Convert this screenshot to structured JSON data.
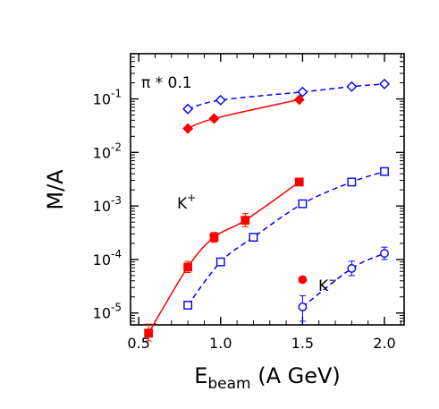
{
  "chart_data": {
    "type": "scatter",
    "title": "",
    "xlabel": "E",
    "xlabel_sub": "beam",
    "xlabel_suffix": " (A GeV)",
    "ylabel": "M/A",
    "xlim": [
      0.45,
      2.12
    ],
    "ylim": [
      6e-06,
      0.7
    ],
    "yscale": "log",
    "grid": false,
    "x_ticks": [
      0.5,
      1.0,
      1.5,
      2.0
    ],
    "x_tick_labels": [
      "0.5",
      "1.0",
      "1.5",
      "2.0"
    ],
    "y_tick_exponents": [
      "-1",
      "-2",
      "-3",
      "-4",
      "-5"
    ],
    "y_tick_base": "10",
    "annotations": {
      "pion": "π * 0.1",
      "kplus": "K",
      "kplus_sup": "+",
      "kminus": "K",
      "kminus_sup": "−"
    },
    "series": [
      {
        "color": "#ff0000",
        "marker": "filled-diamond",
        "line": "solid",
        "x": [
          0.8,
          0.96,
          1.48
        ],
        "y": [
          0.028,
          0.043,
          0.097
        ]
      },
      {
        "color": "#0000ff",
        "marker": "open-diamond",
        "line": "dashed",
        "x": [
          0.8,
          1.0,
          1.5,
          1.8,
          2.0
        ],
        "y": [
          0.065,
          0.095,
          0.135,
          0.17,
          0.19
        ]
      },
      {
        "color": "#ff0000",
        "marker": "filled-square",
        "line": "solid",
        "x": [
          0.56,
          0.8,
          0.96,
          1.15,
          1.48
        ],
        "y": [
          4.2e-06,
          7.2e-05,
          0.00026,
          0.00054,
          0.0028
        ],
        "errors_upper": [
          2e-06,
          2e-05,
          6e-05,
          0.00018,
          0.0003
        ],
        "errors_lower": [
          1.4e-06,
          1.5e-05,
          5e-05,
          0.00013,
          0.0003
        ]
      },
      {
        "color": "#0000ff",
        "marker": "open-square",
        "line": "dashed",
        "x": [
          0.8,
          1.0,
          1.2,
          1.5,
          1.8,
          2.0
        ],
        "y": [
          1.4e-05,
          9e-05,
          0.00026,
          0.0011,
          0.0028,
          0.0044
        ]
      },
      {
        "color": "#ff0000",
        "marker": "filled-circle",
        "line": "none",
        "x": [
          1.5
        ],
        "y": [
          4.2e-05
        ]
      },
      {
        "color": "#0000ff",
        "marker": "open-circle",
        "line": "dashed",
        "x": [
          1.5,
          1.8,
          2.0
        ],
        "y": [
          1.3e-05,
          6.8e-05,
          0.00013
        ],
        "errors_upper": [
          8e-06,
          2.5e-05,
          4e-05
        ],
        "errors_lower": [
          6e-06,
          1.8e-05,
          3e-05
        ]
      }
    ]
  }
}
